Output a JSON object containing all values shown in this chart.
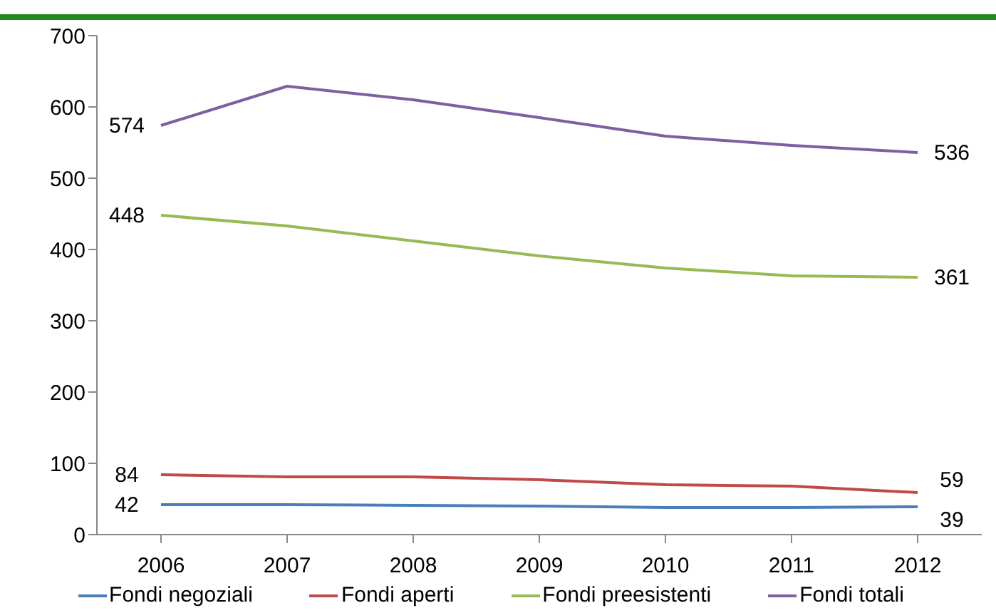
{
  "chart_data": {
    "type": "line",
    "categories": [
      "2006",
      "2007",
      "2008",
      "2009",
      "2010",
      "2011",
      "2012"
    ],
    "series": [
      {
        "name": "Fondi negoziali",
        "color": "#4a7ebb",
        "values": [
          42,
          42,
          41,
          40,
          38,
          38,
          39
        ],
        "value_labels": [
          "42",
          null,
          null,
          null,
          null,
          null,
          "39"
        ]
      },
      {
        "name": "Fondi aperti",
        "color": "#be4b48",
        "values": [
          84,
          81,
          81,
          77,
          70,
          68,
          59
        ],
        "value_labels": [
          "84",
          null,
          null,
          null,
          null,
          null,
          "59"
        ]
      },
      {
        "name": "Fondi preesistenti",
        "color": "#98b954",
        "values": [
          448,
          433,
          412,
          391,
          374,
          363,
          361
        ],
        "value_labels": [
          "448",
          null,
          null,
          null,
          null,
          null,
          "361"
        ]
      },
      {
        "name": "Fondi totali",
        "color": "#7d60a0",
        "values": [
          574,
          629,
          610,
          585,
          559,
          546,
          536
        ],
        "value_labels": [
          "574",
          null,
          null,
          null,
          null,
          null,
          "536"
        ]
      }
    ],
    "ylim": [
      0,
      700
    ],
    "yticks": [
      0,
      100,
      200,
      300,
      400,
      500,
      600,
      700
    ],
    "legend": "bottom",
    "marker": "none"
  }
}
